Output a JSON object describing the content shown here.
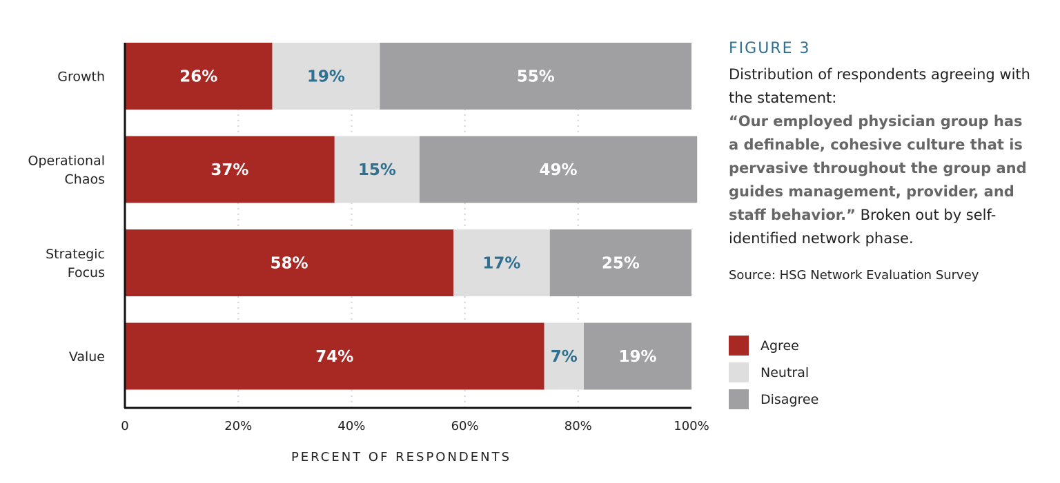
{
  "figure_label": "FIGURE 3",
  "description": {
    "intro": "Distribution of respondents agreeing with the statement:",
    "quote": "“Our employed physician group has a definable, cohesive culture that is pervasive throughout the group and guides management, provider, and staff behavior.”",
    "outro": " Broken out by self-identified network phase."
  },
  "source": "Source: HSG Network Evaluation Survey",
  "colors": {
    "Agree": "#a82824",
    "Neutral": "#dedede",
    "Disagree": "#a0a0a2",
    "neutral_label": "#2f6f8f"
  },
  "chart_data": {
    "type": "bar",
    "orientation": "horizontal",
    "stacked": true,
    "categories": [
      "Growth",
      "Operational Chaos",
      "Strategic Focus",
      "Value"
    ],
    "category_lines": [
      [
        "Growth"
      ],
      [
        "Operational",
        "Chaos"
      ],
      [
        "Strategic",
        "Focus"
      ],
      [
        "Value"
      ]
    ],
    "series": [
      {
        "name": "Agree",
        "values": [
          26,
          37,
          58,
          74
        ],
        "labels": [
          "26%",
          "37%",
          "58%",
          "74%"
        ]
      },
      {
        "name": "Neutral",
        "values": [
          19,
          15,
          17,
          7
        ],
        "labels": [
          "19%",
          "15%",
          "17%",
          "7%"
        ]
      },
      {
        "name": "Disagree",
        "values": [
          55,
          49,
          25,
          19
        ],
        "labels": [
          "55%",
          "49%",
          "25%",
          "19%"
        ]
      }
    ],
    "xlabel": "PERCENT OF RESPONDENTS",
    "xlim": [
      0,
      100
    ],
    "xticks": [
      0,
      20,
      40,
      60,
      80,
      100
    ],
    "xtick_labels": [
      "0",
      "20%",
      "40%",
      "60%",
      "80%",
      "100%"
    ],
    "grid": "vertical dotted",
    "legend_position": "right"
  }
}
